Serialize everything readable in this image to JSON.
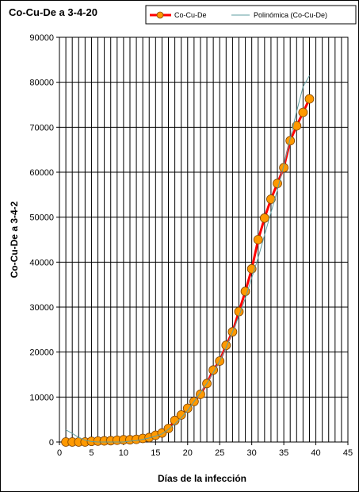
{
  "chart_data": {
    "type": "line",
    "title": "Co-Cu-De  a 3-4-20",
    "xlabel": "Días de la infección",
    "ylabel": "Co-Cu-De  a 3-4-2",
    "xlim": [
      0,
      45
    ],
    "ylim": [
      0,
      90000
    ],
    "x_ticks": [
      "0",
      "5",
      "10",
      "15",
      "20",
      "25",
      "30",
      "35",
      "40",
      "45"
    ],
    "y_ticks": [
      "0",
      "10000",
      "20000",
      "30000",
      "40000",
      "50000",
      "60000",
      "70000",
      "80000",
      "90000"
    ],
    "grid": true,
    "legend_position": "top",
    "series": [
      {
        "name": "Co-Cu-De",
        "line_color": "#ff0000",
        "marker_color": "#ff9900",
        "x": [
          1,
          2,
          3,
          4,
          5,
          6,
          7,
          8,
          9,
          10,
          11,
          12,
          13,
          14,
          15,
          16,
          17,
          18,
          19,
          20,
          21,
          22,
          23,
          24,
          25,
          26,
          27,
          28,
          29,
          30,
          31,
          32,
          33,
          34,
          35,
          36,
          37,
          38,
          39
        ],
        "y": [
          0,
          0,
          0,
          0,
          150,
          200,
          250,
          300,
          400,
          500,
          500,
          600,
          800,
          1000,
          1500,
          2000,
          3000,
          4800,
          6000,
          7500,
          9000,
          10600,
          13000,
          16000,
          18000,
          21500,
          24500,
          29000,
          33500,
          38500,
          45000,
          49800,
          54000,
          57500,
          61000,
          67000,
          70300,
          73300,
          76300
        ]
      },
      {
        "name": "Polinómica (Co-Cu-De)",
        "line_color": "#5f9ea0",
        "x": [
          1,
          2,
          3,
          4,
          5,
          6,
          7,
          8,
          9,
          10,
          11,
          12,
          13,
          14,
          15,
          16,
          17,
          18,
          19,
          20,
          21,
          22,
          23,
          24,
          25,
          26,
          27,
          28,
          29,
          30,
          31,
          32,
          33,
          34,
          35,
          36,
          37,
          38,
          39
        ],
        "y": [
          2700,
          1900,
          1000,
          400,
          100,
          0,
          0,
          0,
          0,
          0,
          200,
          300,
          600,
          900,
          1300,
          1800,
          2800,
          4000,
          5400,
          7000,
          9000,
          11000,
          13000,
          15500,
          18000,
          21000,
          24500,
          28000,
          32000,
          36500,
          41000,
          46000,
          51000,
          56000,
          61500,
          67500,
          73500,
          79000,
          81500
        ]
      }
    ]
  }
}
